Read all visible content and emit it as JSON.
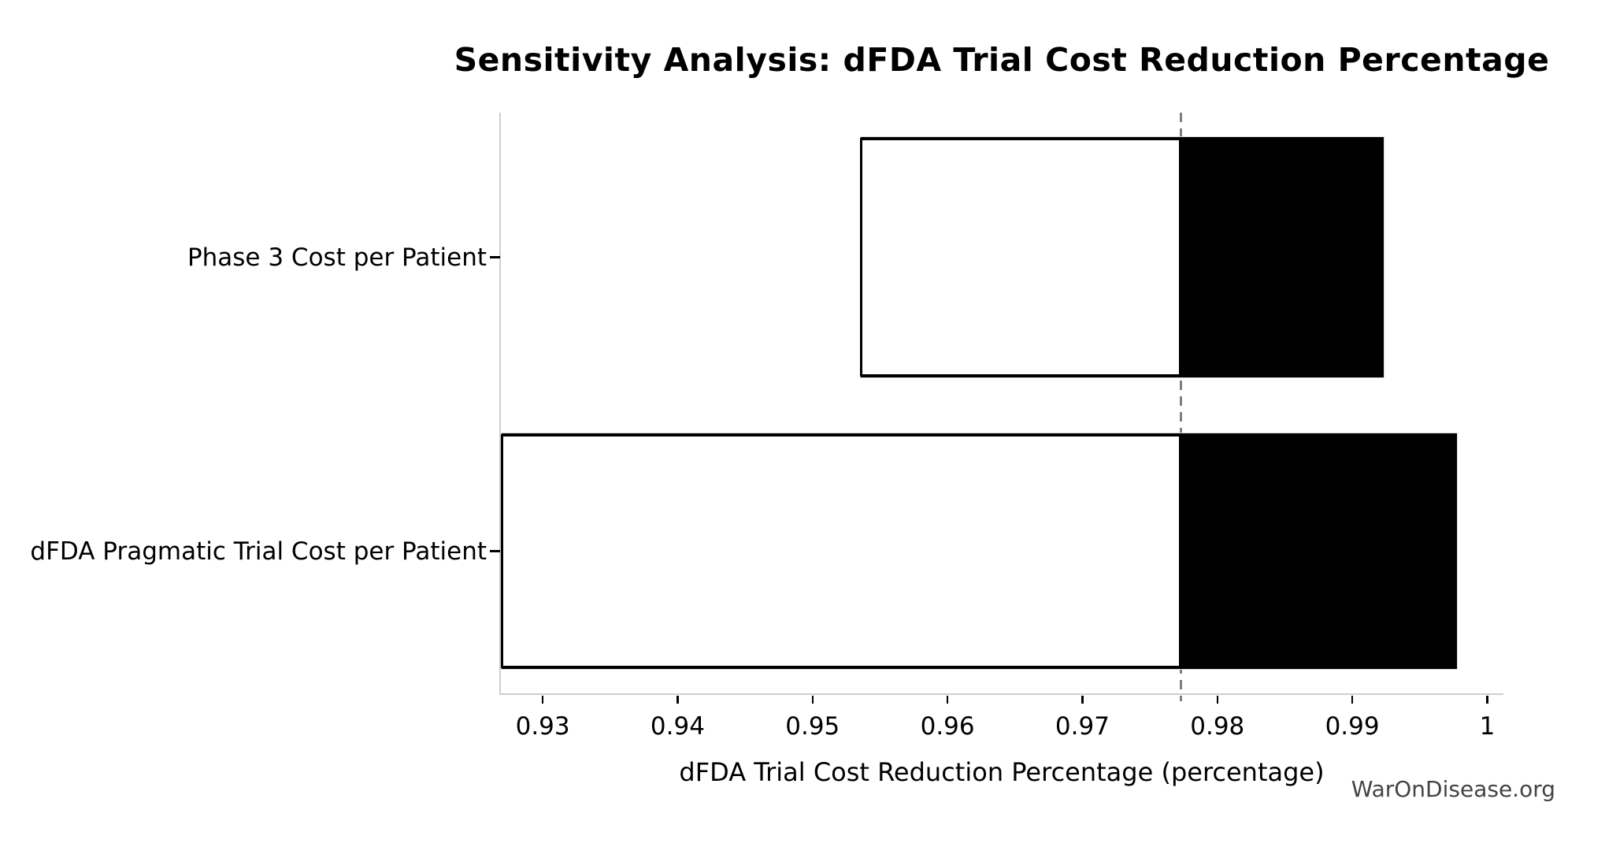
{
  "figure": {
    "watermark": "WarOnDisease.org"
  },
  "chart_data": {
    "type": "bar",
    "subtype": "tornado-sensitivity",
    "orientation": "horizontal",
    "title": "Sensitivity Analysis: dFDA Trial Cost Reduction Percentage",
    "xlabel": "dFDA Trial Cost Reduction Percentage (percentage)",
    "ylabel": "",
    "baseline": 0.9773,
    "xlim": [
      0.9269,
      1.0012
    ],
    "x_ticks": [
      0.93,
      0.94,
      0.95,
      0.96,
      0.97,
      0.98,
      0.99,
      1
    ],
    "x_tick_labels": [
      "0.93",
      "0.94",
      "0.95",
      "0.96",
      "0.97",
      "0.98",
      "0.99",
      "1"
    ],
    "categories": [
      "Phase 3 Cost per Patient",
      "dFDA Pragmatic Trial Cost per Patient"
    ],
    "bars": [
      {
        "label": "Phase 3 Cost per Patient",
        "low": 0.9535,
        "high": 0.9924
      },
      {
        "label": "dFDA Pragmatic Trial Cost per Patient",
        "low": 0.9269,
        "high": 0.9978
      }
    ],
    "grid": false,
    "legend_position": "none",
    "colors": {
      "low_side_fill": "#ffffff",
      "high_side_fill": "#000000",
      "bar_edge": "#000000",
      "high_side_edge": "#dcdcdc",
      "baseline_line": "#7f7f7f",
      "spine": "#cfcfcf",
      "text": "#000000",
      "watermark": "#444444"
    }
  }
}
